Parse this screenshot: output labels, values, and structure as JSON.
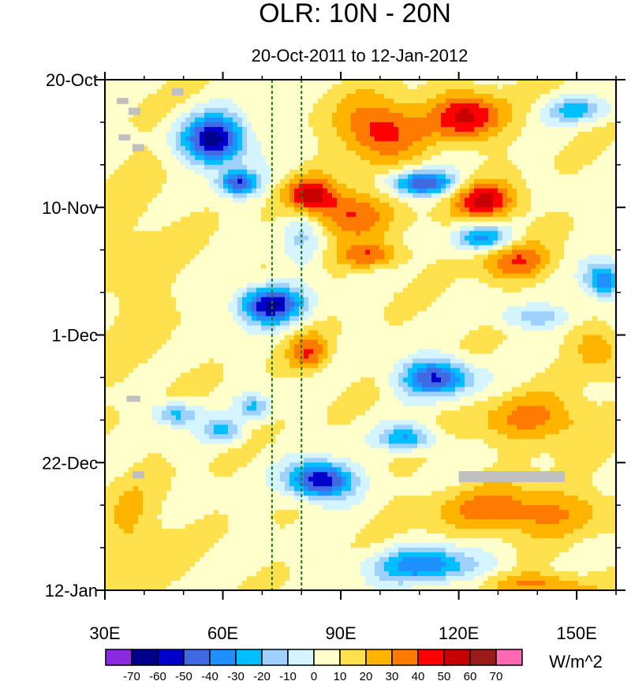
{
  "chart_data": {
    "type": "heatmap",
    "subtype": "hovmoller",
    "title": "OLR: 10N - 20N",
    "subtitle": "20-Oct-2011 to 12-Jan-2012",
    "units": "W/m^2",
    "x_axis": {
      "range": [
        30,
        160
      ],
      "ticks": [
        30,
        60,
        90,
        120,
        150
      ],
      "tick_labels": [
        "30E",
        "60E",
        "90E",
        "120E",
        "150E"
      ],
      "minor_ticks": [
        40,
        50,
        70,
        80,
        100,
        110,
        130,
        140,
        160
      ]
    },
    "y_axis": {
      "range_days": [
        0,
        84
      ],
      "ticks_days": [
        0,
        21,
        42,
        63,
        84
      ],
      "tick_labels": [
        "20-Oct",
        "10-Nov",
        "1-Dec",
        "22-Dec",
        "12-Jan"
      ],
      "minor_tick_step_days": 7
    },
    "reference_lines": [
      {
        "lon": 72.5,
        "style": "dashed",
        "color": "#1a7a1a"
      },
      {
        "lon": 80,
        "style": "dashed",
        "color": "#1a7a1a"
      }
    ],
    "colorbar": {
      "levels": [
        -70,
        -60,
        -50,
        -40,
        -30,
        -20,
        -10,
        0,
        10,
        20,
        30,
        40,
        50,
        60,
        70
      ],
      "label_text": [
        "-70",
        "-60",
        "-50",
        "-40",
        "-30",
        "-20",
        "-10",
        "0",
        "10",
        "20",
        "30",
        "40",
        "50",
        "60",
        "70"
      ],
      "colors": [
        "#8a2be2",
        "#00008b",
        "#0000cd",
        "#4169e1",
        "#1e90ff",
        "#00bfff",
        "#9fd1ff",
        "#d4f4ff",
        "#ffffcc",
        "#ffe14d",
        "#ffb400",
        "#ff7a00",
        "#ff0000",
        "#c80000",
        "#9b1b1b",
        "#ff69b4"
      ]
    },
    "anomaly_features": [
      {
        "lon": 58,
        "day": 10,
        "value": -75,
        "rx": 8,
        "ry": 4
      },
      {
        "lon": 64,
        "day": 17,
        "value": -55,
        "rx": 5,
        "ry": 2
      },
      {
        "lon": 72,
        "day": 37,
        "value": -70,
        "rx": 8,
        "ry": 3
      },
      {
        "lon": 80,
        "day": 25,
        "value": -20,
        "rx": 5,
        "ry": 6
      },
      {
        "lon": 85,
        "day": 66,
        "value": -72,
        "rx": 8,
        "ry": 3
      },
      {
        "lon": 114,
        "day": 49,
        "value": -60,
        "rx": 9,
        "ry": 3
      },
      {
        "lon": 111,
        "day": 17,
        "value": -55,
        "rx": 8,
        "ry": 2
      },
      {
        "lon": 126,
        "day": 26,
        "value": -40,
        "rx": 7,
        "ry": 2
      },
      {
        "lon": 157,
        "day": 33,
        "value": -50,
        "rx": 5,
        "ry": 3
      },
      {
        "lon": 107,
        "day": 59,
        "value": -40,
        "rx": 7,
        "ry": 2
      },
      {
        "lon": 112,
        "day": 80,
        "value": -45,
        "rx": 14,
        "ry": 3
      },
      {
        "lon": 140,
        "day": 39,
        "value": -25,
        "rx": 10,
        "ry": 2
      },
      {
        "lon": 48,
        "day": 55,
        "value": -35,
        "rx": 6,
        "ry": 2
      },
      {
        "lon": 60,
        "day": 58,
        "value": -30,
        "rx": 5,
        "ry": 2
      },
      {
        "lon": 68,
        "day": 54,
        "value": -30,
        "rx": 4,
        "ry": 2
      },
      {
        "lon": 150,
        "day": 5,
        "value": -30,
        "rx": 8,
        "ry": 2
      },
      {
        "lon": 100,
        "day": 8,
        "value": 40,
        "rx": 10,
        "ry": 5
      },
      {
        "lon": 122,
        "day": 6,
        "value": 45,
        "rx": 9,
        "ry": 4
      },
      {
        "lon": 82,
        "day": 19,
        "value": 45,
        "rx": 6,
        "ry": 3
      },
      {
        "lon": 92,
        "day": 22,
        "value": 35,
        "rx": 10,
        "ry": 4
      },
      {
        "lon": 127,
        "day": 20,
        "value": 45,
        "rx": 8,
        "ry": 3
      },
      {
        "lon": 98,
        "day": 29,
        "value": 30,
        "rx": 8,
        "ry": 2
      },
      {
        "lon": 135,
        "day": 30,
        "value": 30,
        "rx": 9,
        "ry": 3
      },
      {
        "lon": 82,
        "day": 45,
        "value": 30,
        "rx": 5,
        "ry": 3
      },
      {
        "lon": 140,
        "day": 56,
        "value": 25,
        "rx": 15,
        "ry": 4
      },
      {
        "lon": 135,
        "day": 71,
        "value": 30,
        "rx": 20,
        "ry": 4
      },
      {
        "lon": 140,
        "day": 83,
        "value": 25,
        "rx": 15,
        "ry": 2
      },
      {
        "lon": 155,
        "day": 44,
        "value": 20,
        "rx": 6,
        "ry": 4
      },
      {
        "lon": 38,
        "day": 32,
        "value": 8,
        "rx": 10,
        "ry": 20
      },
      {
        "lon": 38,
        "day": 75,
        "value": 15,
        "rx": 8,
        "ry": 8
      }
    ],
    "missing_data_boxes": [
      {
        "lon": [
          33,
          36
        ],
        "day": [
          3,
          4
        ]
      },
      {
        "lon": [
          36,
          39
        ],
        "day": [
          4.6,
          5.8
        ]
      },
      {
        "lon": [
          33.5,
          36.5
        ],
        "day": [
          9,
          10
        ]
      },
      {
        "lon": [
          37,
          40
        ],
        "day": [
          10.6,
          11.8
        ]
      },
      {
        "lon": [
          47,
          50
        ],
        "day": [
          1.4,
          2.6
        ]
      },
      {
        "lon": [
          35.5,
          39
        ],
        "day": [
          52,
          53
        ]
      },
      {
        "lon": [
          37,
          40
        ],
        "day": [
          64.4,
          65.6
        ]
      },
      {
        "lon": [
          120,
          147
        ],
        "day": [
          64.4,
          66.2
        ]
      }
    ]
  }
}
